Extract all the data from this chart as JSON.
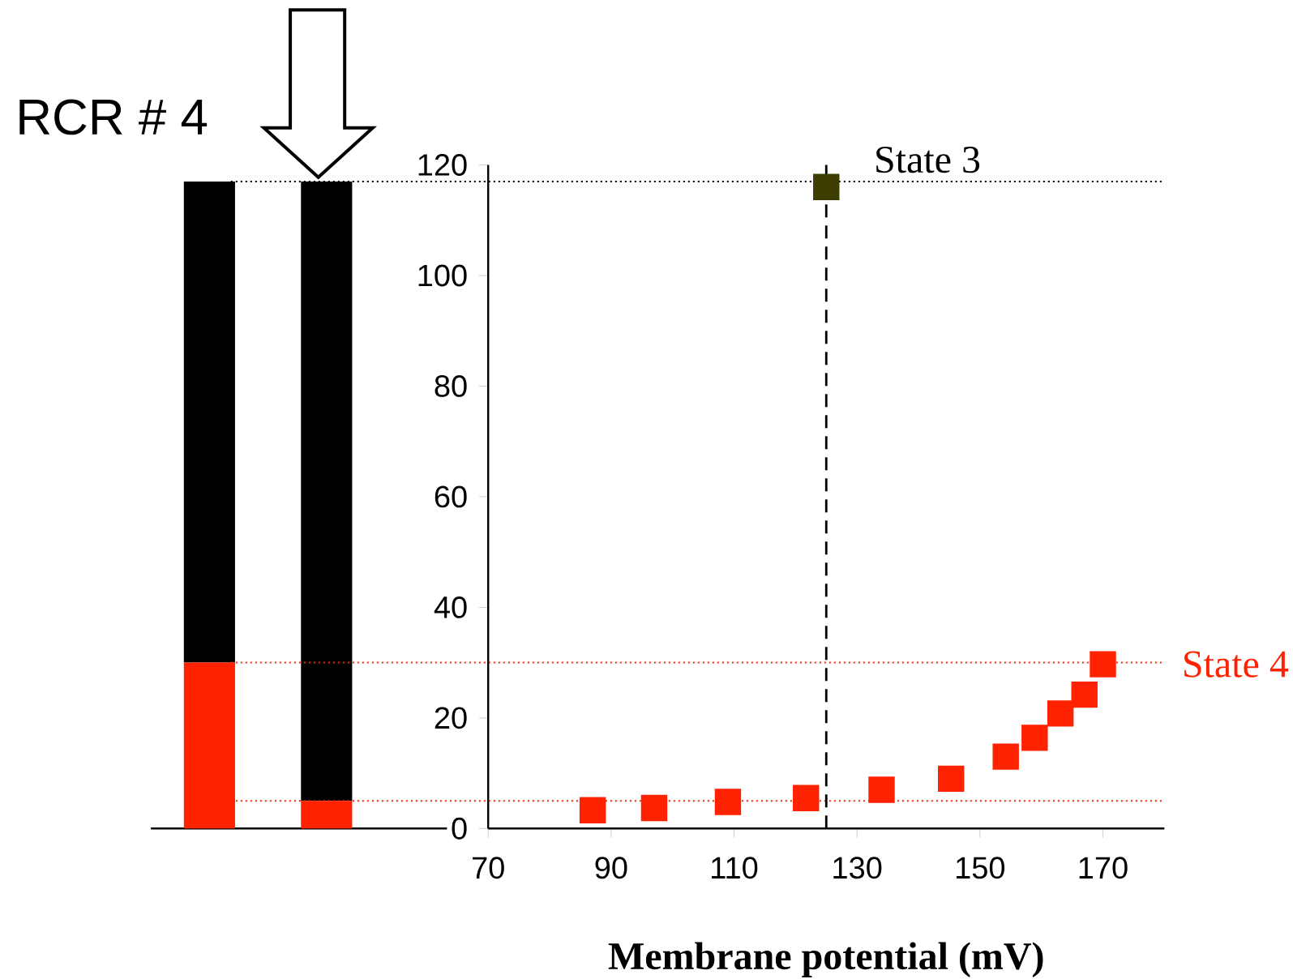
{
  "chart_data": [
    {
      "type": "bar",
      "title": "RCR # 4",
      "stacked": true,
      "categories": [
        null,
        null
      ],
      "ylim": [
        0,
        120
      ],
      "tick_labels": false,
      "series": [
        {
          "color": "#ff2200",
          "values": [
            30,
            5
          ]
        },
        {
          "color": "#000000",
          "values": [
            87,
            112
          ]
        }
      ]
    },
    {
      "type": "scatter",
      "marker": "square",
      "xlabel": "Membrane potential (mV)",
      "xlim": [
        70,
        180
      ],
      "xticks": [
        70,
        90,
        110,
        130,
        150,
        170
      ],
      "ylim": [
        0,
        120
      ],
      "yticks": [
        0,
        20,
        40,
        60,
        80,
        100,
        120
      ],
      "series": [
        {
          "color": "#3d3d00",
          "x": [
            125
          ],
          "values": [
            116
          ]
        },
        {
          "name": "State 4",
          "color": "#ff2200",
          "x": [
            87,
            97,
            109,
            121.7,
            134,
            145.3,
            154.2,
            158.9,
            163.1,
            167,
            170
          ],
          "values": [
            3.3,
            3.7,
            4.8,
            5.5,
            7,
            9,
            13,
            16.4,
            20.8,
            24.2,
            29.7
          ]
        }
      ],
      "annotations": [
        {
          "text": "State 3",
          "x": 125,
          "y": 116
        }
      ],
      "ref_lines": [
        {
          "axis": "y",
          "value": 117,
          "color": "#000000",
          "line_style": "dotted"
        },
        {
          "axis": "y",
          "value": 30,
          "color": "#ff2200",
          "line_style": "dotted"
        },
        {
          "axis": "y",
          "value": 5,
          "color": "#ff2200",
          "line_style": "dotted"
        },
        {
          "axis": "x",
          "value": 125,
          "color": "#000000",
          "line_style": "dashed"
        }
      ]
    }
  ]
}
